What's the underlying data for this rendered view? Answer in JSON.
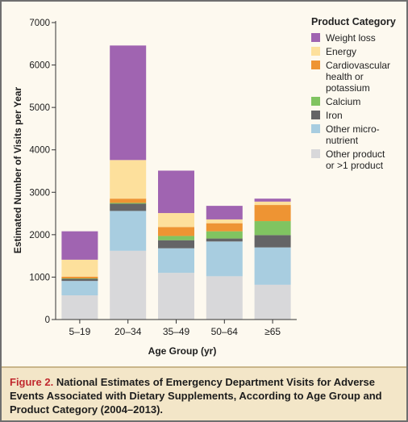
{
  "figure": {
    "caption_label": "Figure 2.",
    "caption_text": "National Estimates of Emergency Department Visits for Adverse Events Associated with Dietary Supplements, According to Age Group and Product Category (2004–2013)."
  },
  "legend": {
    "title": "Product Category"
  },
  "colors": {
    "Weight loss": "#a064b1",
    "Energy": "#fde09c",
    "Cardiovascular health or potassium": "#ee9433",
    "Calcium": "#80c461",
    "Iron": "#646466",
    "Other micronutrient": "#a8cde0",
    "Other product or >1 product": "#d8d8da"
  },
  "chart_data": {
    "type": "bar",
    "stacked": true,
    "xlabel": "Age Group (yr)",
    "ylabel": "Estimated Number of Visits per Year",
    "ylim": [
      0,
      7000
    ],
    "yticks": [
      "0",
      "1000",
      "2000",
      "3000",
      "4000",
      "5000",
      "6000",
      "7000"
    ],
    "categories": [
      "5–19",
      "20–34",
      "35–49",
      "50–64",
      "≥65"
    ],
    "series": [
      {
        "name": "Other product or >1 product",
        "legend_lines": [
          "Other product",
          "or >1 product"
        ],
        "values": [
          570,
          1620,
          1100,
          1020,
          820
        ]
      },
      {
        "name": "Other micronutrient",
        "legend_lines": [
          "Other micro-",
          "nutrient"
        ],
        "values": [
          340,
          940,
          580,
          820,
          880
        ]
      },
      {
        "name": "Iron",
        "legend_lines": [
          "Iron"
        ],
        "values": [
          50,
          170,
          190,
          70,
          290
        ]
      },
      {
        "name": "Calcium",
        "legend_lines": [
          "Calcium"
        ],
        "values": [
          10,
          20,
          100,
          170,
          330
        ]
      },
      {
        "name": "Cardiovascular health or potassium",
        "legend_lines": [
          "Cardiovascular",
          "health or",
          "potassium"
        ],
        "values": [
          40,
          100,
          210,
          190,
          380
        ]
      },
      {
        "name": "Energy",
        "legend_lines": [
          "Energy"
        ],
        "values": [
          400,
          910,
          330,
          90,
          80
        ]
      },
      {
        "name": "Weight loss",
        "legend_lines": [
          "Weight loss"
        ],
        "values": [
          670,
          2700,
          1000,
          320,
          70
        ]
      }
    ]
  }
}
